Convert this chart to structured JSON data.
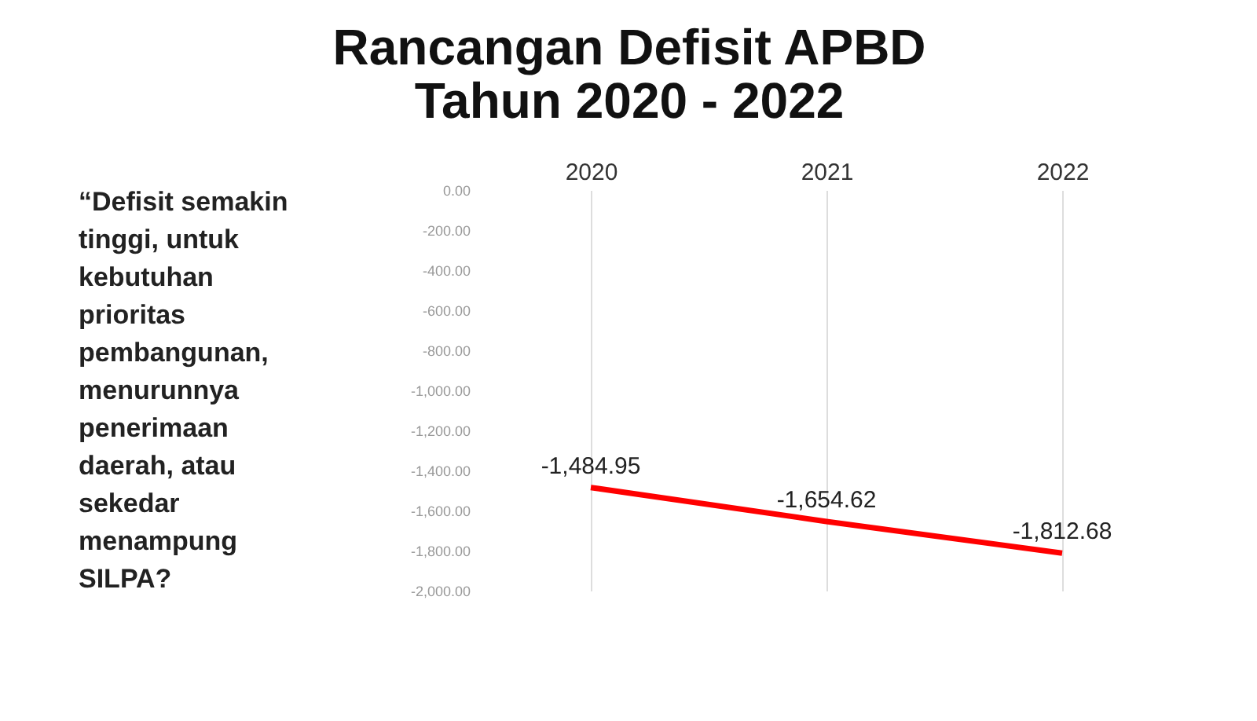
{
  "chart_data": {
    "type": "line",
    "title": "Rancangan Defisit APBD\nTahun 2020 - 2022",
    "annotations": [
      "“Defisit semakin\ntinggi, untuk\nkebutuhan\nprioritas\npembangunan,\nmenurunnya\npenerimaan\ndaerah, atau\nsekedar\nmenampung\nSILPA?"
    ],
    "categories": [
      "2020",
      "2021",
      "2022"
    ],
    "series": [
      {
        "color": "#ff0000",
        "values": [
          -1484.95,
          -1654.62,
          -1812.68
        ],
        "value_labels": [
          "-1,484.95",
          "-1,654.62",
          "-1,812.68"
        ]
      }
    ],
    "ylim": [
      -2000,
      0
    ],
    "yticks": [
      {
        "value": 0,
        "label": "0.00"
      },
      {
        "value": -200,
        "label": "-200.00"
      },
      {
        "value": -400,
        "label": "-400.00"
      },
      {
        "value": -600,
        "label": "-600.00"
      },
      {
        "value": -800,
        "label": "-800.00"
      },
      {
        "value": -1000,
        "label": "-1,000.00"
      },
      {
        "value": -1200,
        "label": "-1,200.00"
      },
      {
        "value": -1400,
        "label": "-1,400.00"
      },
      {
        "value": -1600,
        "label": "-1,600.00"
      },
      {
        "value": -1800,
        "label": "-1,800.00"
      },
      {
        "value": -2000,
        "label": "-2,000.00"
      }
    ],
    "grid": "x",
    "marker": "none",
    "line_style": "solid"
  }
}
